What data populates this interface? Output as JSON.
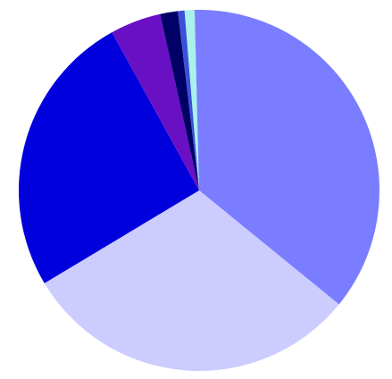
{
  "chart_data": {
    "type": "pie",
    "title": "",
    "legend": "none",
    "start_angle_deg": 0,
    "direction": "clockwise",
    "slices": [
      {
        "value": 36.2,
        "color": "#7a7dff"
      },
      {
        "value": 30.8,
        "color": "#ccccff"
      },
      {
        "value": 25.8,
        "color": "#0000dd"
      },
      {
        "value": 4.6,
        "color": "#6a10c4"
      },
      {
        "value": 1.6,
        "color": "#000066"
      },
      {
        "value": 0.6,
        "color": "#3b50d8"
      },
      {
        "value": 0.9,
        "color": "#a9f1ea"
      },
      {
        "value": 0.4,
        "color": "#7a7dff"
      }
    ]
  }
}
